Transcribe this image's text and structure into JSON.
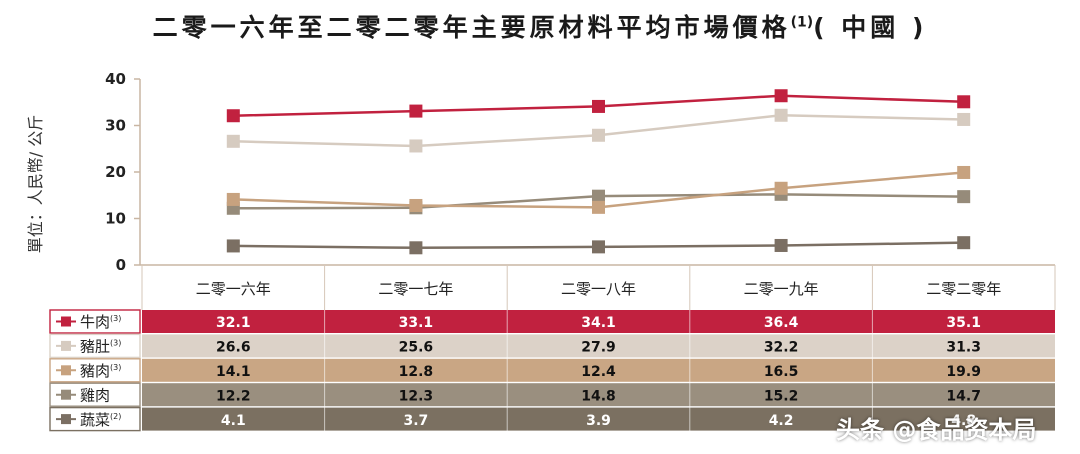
{
  "title": "二零一六年至二零二零年主要原材料平均市場價格",
  "title_footnote": "(1)",
  "title_suffix": "( 中國 )",
  "ylabel": "單位：人民幣/ 公斤",
  "watermark": "头条 @食品资本局",
  "chart_data": {
    "type": "line",
    "title": "二零一六年至二零二零年主要原材料平均市場價格(1)( 中國 )",
    "xlabel": "",
    "ylabel": "單位：人民幣/ 公斤",
    "ylim": [
      0,
      40
    ],
    "yticks": [
      0,
      10,
      20,
      30,
      40
    ],
    "categories": [
      "二零一六年",
      "二零一七年",
      "二零一八年",
      "二零一九年",
      "二零二零年"
    ],
    "series": [
      {
        "name": "牛肉",
        "footnote": "(3)",
        "color": "#c1213f",
        "text_color": "#ffffff",
        "row_bg": "#c1213f",
        "values": [
          32.1,
          33.1,
          34.1,
          36.4,
          35.1
        ]
      },
      {
        "name": "豬肚",
        "footnote": "(3)",
        "color": "#d6cbc0",
        "text_color": "#111111",
        "row_bg": "#dcd2c8",
        "values": [
          26.6,
          25.6,
          27.9,
          32.2,
          31.3
        ]
      },
      {
        "name": "豬肉",
        "footnote": "(3)",
        "color": "#c7a27f",
        "text_color": "#111111",
        "row_bg": "#c9a684",
        "values": [
          14.1,
          12.8,
          12.4,
          16.5,
          19.9
        ]
      },
      {
        "name": "雞肉",
        "footnote": "",
        "color": "#968b7a",
        "text_color": "#111111",
        "row_bg": "#9a8f7f",
        "values": [
          12.2,
          12.3,
          14.8,
          15.2,
          14.7
        ]
      },
      {
        "name": "蔬菜",
        "footnote": "(2)",
        "color": "#7b6f63",
        "text_color": "#ffffff",
        "row_bg": "#7b7061",
        "values": [
          4.1,
          3.7,
          3.9,
          4.2,
          4.8
        ]
      }
    ],
    "grid": false,
    "legend": "table-left"
  }
}
